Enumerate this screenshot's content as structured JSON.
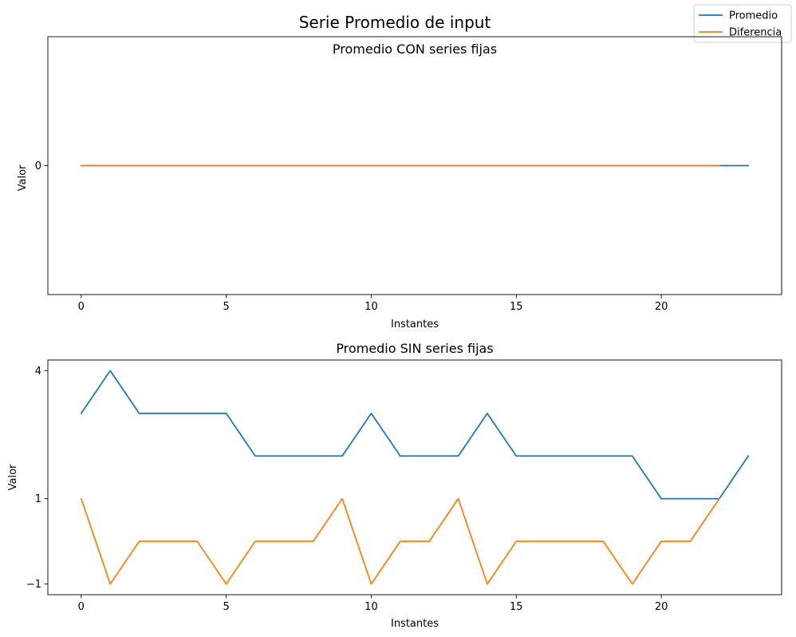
{
  "figure": {
    "suptitle": "Serie Promedio de input",
    "legend": {
      "placement": "top-right",
      "entries": [
        {
          "label": "Promedio",
          "color": "#1f77b4"
        },
        {
          "label": "Diferencia",
          "color": "#ff7f0e"
        }
      ]
    }
  },
  "chart_data": [
    {
      "type": "line",
      "title": "Promedio CON series fijas",
      "xlabel": "Instantes",
      "ylabel": "Valor",
      "xlim": [
        -1.15,
        24.15
      ],
      "ylim": [
        -0.4,
        0.4
      ],
      "xticks": [
        0,
        5,
        10,
        15,
        20
      ],
      "yticks": [
        0
      ],
      "ytick_labels": [
        "0"
      ],
      "grid": false,
      "series": [
        {
          "name": "Promedio",
          "color": "#1f77b4",
          "x": [
            0,
            1,
            2,
            3,
            4,
            5,
            6,
            7,
            8,
            9,
            10,
            11,
            12,
            13,
            14,
            15,
            16,
            17,
            18,
            19,
            20,
            21,
            22,
            23
          ],
          "y": [
            0,
            0,
            0,
            0,
            0,
            0,
            0,
            0,
            0,
            0,
            0,
            0,
            0,
            0,
            0,
            0,
            0,
            0,
            0,
            0,
            0,
            0,
            0,
            0
          ]
        },
        {
          "name": "Diferencia",
          "color": "#ff7f0e",
          "x": [
            0,
            1,
            2,
            3,
            4,
            5,
            6,
            7,
            8,
            9,
            10,
            11,
            12,
            13,
            14,
            15,
            16,
            17,
            18,
            19,
            20,
            21,
            22
          ],
          "y": [
            0,
            0,
            0,
            0,
            0,
            0,
            0,
            0,
            0,
            0,
            0,
            0,
            0,
            0,
            0,
            0,
            0,
            0,
            0,
            0,
            0,
            0,
            0
          ]
        }
      ]
    },
    {
      "type": "line",
      "title": "Promedio SIN series fijas",
      "xlabel": "Instantes",
      "ylabel": "Valor",
      "xlim": [
        -1.15,
        24.15
      ],
      "ylim": [
        -1.25,
        4.25
      ],
      "xticks": [
        0,
        5,
        10,
        15,
        20
      ],
      "yticks": [
        -1,
        1,
        4
      ],
      "ytick_labels": [
        "−1",
        "1",
        "4"
      ],
      "grid": false,
      "series": [
        {
          "name": "Promedio",
          "color": "#1f77b4",
          "x": [
            0,
            1,
            2,
            3,
            4,
            5,
            6,
            7,
            8,
            9,
            10,
            11,
            12,
            13,
            14,
            15,
            16,
            17,
            18,
            19,
            20,
            21,
            22,
            23
          ],
          "y": [
            3,
            4,
            3,
            3,
            3,
            3,
            2,
            2,
            2,
            2,
            3,
            2,
            2,
            2,
            3,
            2,
            2,
            2,
            2,
            2,
            1,
            1,
            1,
            2
          ]
        },
        {
          "name": "Diferencia",
          "color": "#ff7f0e",
          "x": [
            0,
            1,
            2,
            3,
            4,
            5,
            6,
            7,
            8,
            9,
            10,
            11,
            12,
            13,
            14,
            15,
            16,
            17,
            18,
            19,
            20,
            21,
            22
          ],
          "y": [
            1,
            -1,
            0,
            0,
            0,
            -1,
            0,
            0,
            0,
            1,
            -1,
            0,
            0,
            1,
            -1,
            0,
            0,
            0,
            0,
            -1,
            0,
            0,
            1
          ]
        }
      ]
    }
  ]
}
